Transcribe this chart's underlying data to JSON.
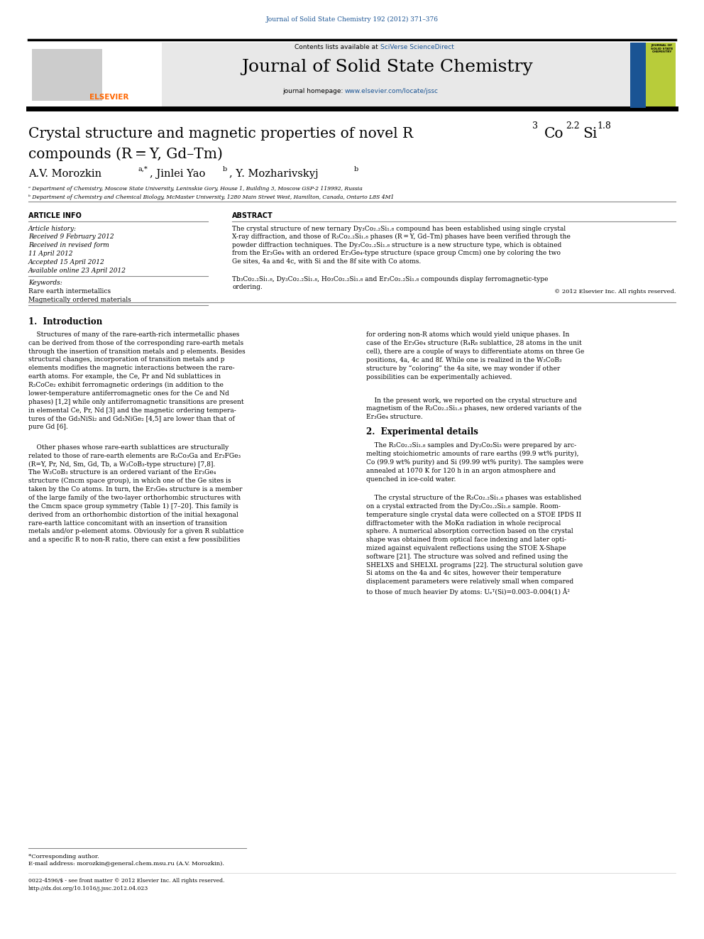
{
  "page_width": 9.92,
  "page_height": 13.23,
  "background_color": "#ffffff",
  "header_journal_text": "Journal of Solid State Chemistry 192 (2012) 371–376",
  "header_journal_color": "#1a5494",
  "contents_text": "Contents lists available at ",
  "sciverse_text": "SciVerse ScienceDirect",
  "sciverse_color": "#1a5494",
  "journal_name": "Journal of Solid State Chemistry",
  "homepage_text": "journal homepage: ",
  "homepage_url": "www.elsevier.com/locate/jssc",
  "homepage_url_color": "#1a5494",
  "header_bg_color": "#e8e8e8",
  "title_line2": "compounds (R = Y, Gd–Tm)",
  "affil_a": "ᵃ Department of Chemistry, Moscow State University, Leninskie Gory, House 1, Building 3, Moscow GSP-2 119992, Russia",
  "affil_b": "ᵇ Department of Chemistry and Chemical Biology, McMaster University, 1280 Main Street West, Hamilton, Canada, Ontario L8S 4M1",
  "article_info_header": "ARTICLE INFO",
  "article_history": "Article history:",
  "received": "Received 9 February 2012",
  "received_revised": "Received in revised form",
  "revised_date": "11 April 2012",
  "accepted": "Accepted 15 April 2012",
  "available": "Available online 23 April 2012",
  "keywords_header": "Keywords:",
  "keyword1": "Rare earth intermetallics",
  "keyword2": "Magnetically ordered materials",
  "abstract_header": "ABSTRACT",
  "abstract_text1": "The crystal structure of new ternary Dy₃Co₂.₂Si₁.₈ compound has been established using single crystal\nX-ray diffraction, and those of R₃Co₂.₂Si₁.₈ phases (R = Y, Gd–Tm) phases have been verified through the\npowder diffraction techniques. The Dy₃Co₂.₂Si₁.₈ structure is a new structure type, which is obtained\nfrom the Er₃Ge₄ with an ordered Er₃Ge₄-type structure (space group Cmcm) one by coloring the two\nGe sites, 4a and 4c, with Si and the 8f site with Co atoms.",
  "abstract_text2": "Tb₃Co₂.₂Si₁.₈, Dy₃Co₂.₂Si₁.₈, Ho₃Co₂.₂Si₁.₈ and Er₃Co₂.₂Si₁.₈ compounds display ferromagnetic-type\nordering.",
  "copyright": "© 2012 Elsevier Inc. All rights reserved.",
  "intro_header": "1.  Introduction",
  "exp_header": "2.  Experimental details",
  "footer_text1": "*Corresponding author.",
  "footer_email": "E-mail address: morozkin@general.chem.msu.ru (A.V. Morozkin).",
  "footer_text2": "0022-4596/$ - see front matter © 2012 Elsevier Inc. All rights reserved.",
  "footer_doi": "http://dx.doi.org/10.1016/j.jssc.2012.04.023"
}
